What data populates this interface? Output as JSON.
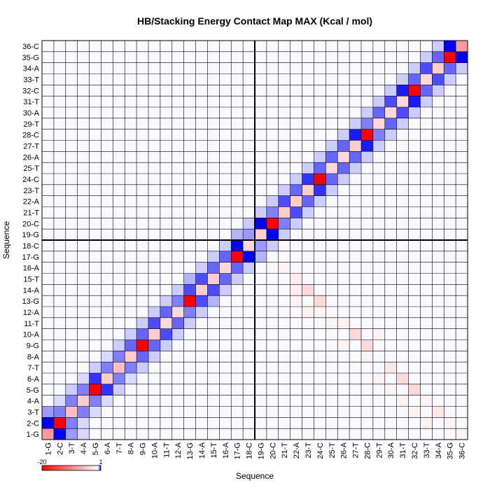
{
  "chart_data": {
    "type": "heatmap",
    "title": "HB/Stacking Energy Contact Map MAX (Kcal / mol)",
    "xlabel": "Sequence",
    "ylabel": "Sequence",
    "labels": [
      "1-G",
      "2-C",
      "3-T",
      "4-A",
      "5-G",
      "6-A",
      "7-T",
      "8-A",
      "9-G",
      "10-A",
      "11-T",
      "12-A",
      "13-G",
      "14-A",
      "15-T",
      "16-A",
      "17-G",
      "18-C",
      "19-G",
      "20-C",
      "21-T",
      "22-A",
      "23-T",
      "24-C",
      "25-T",
      "26-A",
      "27-T",
      "28-C",
      "29-T",
      "30-A",
      "31-T",
      "32-C",
      "33-T",
      "34-A",
      "35-G",
      "36-C"
    ],
    "colorbar": {
      "min": -20,
      "max": 1,
      "min_label": "-20",
      "max_label": "1",
      "low_color": "#ff0000",
      "mid_color": "#ffffff",
      "high_color": "#0000ff"
    },
    "grid": true,
    "separator_after_index": 18,
    "cells": [
      [
        1,
        1,
        -8
      ],
      [
        1,
        2,
        1
      ],
      [
        1,
        3,
        0.4
      ],
      [
        1,
        4,
        0.15
      ],
      [
        2,
        1,
        1
      ],
      [
        2,
        2,
        -20
      ],
      [
        2,
        3,
        0.5
      ],
      [
        2,
        4,
        0.15
      ],
      [
        3,
        1,
        0.4
      ],
      [
        3,
        2,
        0.5
      ],
      [
        3,
        3,
        -5
      ],
      [
        3,
        4,
        0.5
      ],
      [
        3,
        5,
        0.15
      ],
      [
        4,
        2,
        0.15
      ],
      [
        4,
        3,
        0.5
      ],
      [
        4,
        4,
        -4
      ],
      [
        4,
        5,
        0.5
      ],
      [
        4,
        6,
        0.15
      ],
      [
        5,
        3,
        0.2
      ],
      [
        5,
        4,
        0.5
      ],
      [
        5,
        5,
        -20
      ],
      [
        5,
        6,
        0.8
      ],
      [
        5,
        7,
        0.2
      ],
      [
        6,
        4,
        0.15
      ],
      [
        6,
        5,
        0.8
      ],
      [
        6,
        6,
        -4
      ],
      [
        6,
        7,
        0.5
      ],
      [
        6,
        8,
        0.15
      ],
      [
        7,
        5,
        0.2
      ],
      [
        7,
        6,
        0.5
      ],
      [
        7,
        7,
        -5
      ],
      [
        7,
        8,
        0.5
      ],
      [
        7,
        9,
        0.2
      ],
      [
        8,
        6,
        0.15
      ],
      [
        8,
        7,
        0.5
      ],
      [
        8,
        8,
        -4
      ],
      [
        8,
        9,
        0.6
      ],
      [
        8,
        10,
        0.2
      ],
      [
        9,
        7,
        0.2
      ],
      [
        9,
        8,
        0.6
      ],
      [
        9,
        9,
        -20
      ],
      [
        9,
        10,
        0.6
      ],
      [
        9,
        11,
        0.2
      ],
      [
        10,
        8,
        0.2
      ],
      [
        10,
        9,
        0.6
      ],
      [
        10,
        10,
        -4
      ],
      [
        10,
        11,
        0.7
      ],
      [
        10,
        12,
        0.2
      ],
      [
        11,
        9,
        0.2
      ],
      [
        11,
        10,
        0.7
      ],
      [
        11,
        11,
        -3
      ],
      [
        11,
        12,
        0.6
      ],
      [
        11,
        13,
        0.2
      ],
      [
        12,
        10,
        0.2
      ],
      [
        12,
        11,
        0.6
      ],
      [
        12,
        12,
        -3
      ],
      [
        12,
        13,
        0.5
      ],
      [
        12,
        14,
        0.2
      ],
      [
        13,
        11,
        0.2
      ],
      [
        13,
        12,
        0.5
      ],
      [
        13,
        13,
        -20
      ],
      [
        13,
        14,
        0.7
      ],
      [
        13,
        15,
        0.3
      ],
      [
        14,
        12,
        0.2
      ],
      [
        14,
        13,
        0.7
      ],
      [
        14,
        14,
        -4
      ],
      [
        14,
        15,
        0.7
      ],
      [
        14,
        16,
        0.2
      ],
      [
        15,
        13,
        0.3
      ],
      [
        15,
        14,
        0.7
      ],
      [
        15,
        15,
        -4
      ],
      [
        15,
        16,
        0.6
      ],
      [
        15,
        17,
        0.2
      ],
      [
        16,
        14,
        0.2
      ],
      [
        16,
        15,
        0.6
      ],
      [
        16,
        16,
        -3
      ],
      [
        16,
        17,
        0.6
      ],
      [
        16,
        18,
        0.2
      ],
      [
        17,
        15,
        0.2
      ],
      [
        17,
        16,
        0.6
      ],
      [
        17,
        17,
        -20
      ],
      [
        17,
        18,
        1
      ],
      [
        17,
        19,
        0.3
      ],
      [
        18,
        16,
        0.2
      ],
      [
        18,
        17,
        1
      ],
      [
        18,
        18,
        -3
      ],
      [
        18,
        19,
        0.4
      ],
      [
        18,
        20,
        0.2
      ],
      [
        19,
        17,
        0.3
      ],
      [
        19,
        18,
        0.4
      ],
      [
        19,
        19,
        -4
      ],
      [
        19,
        20,
        1
      ],
      [
        19,
        21,
        0.2
      ],
      [
        20,
        18,
        0.2
      ],
      [
        20,
        19,
        1
      ],
      [
        20,
        20,
        -20
      ],
      [
        20,
        21,
        0.5
      ],
      [
        20,
        22,
        0.2
      ],
      [
        21,
        19,
        0.2
      ],
      [
        21,
        20,
        0.5
      ],
      [
        21,
        21,
        -4
      ],
      [
        21,
        22,
        0.7
      ],
      [
        21,
        23,
        0.2
      ],
      [
        22,
        20,
        0.2
      ],
      [
        22,
        21,
        0.7
      ],
      [
        22,
        22,
        -4
      ],
      [
        22,
        23,
        0.6
      ],
      [
        22,
        24,
        0.2
      ],
      [
        23,
        21,
        0.2
      ],
      [
        23,
        22,
        0.6
      ],
      [
        23,
        23,
        -4
      ],
      [
        23,
        24,
        0.8
      ],
      [
        23,
        25,
        0.2
      ],
      [
        24,
        22,
        0.2
      ],
      [
        24,
        23,
        0.8
      ],
      [
        24,
        24,
        -20
      ],
      [
        24,
        25,
        0.6
      ],
      [
        24,
        26,
        0.2
      ],
      [
        25,
        23,
        0.2
      ],
      [
        25,
        24,
        0.6
      ],
      [
        25,
        25,
        -3
      ],
      [
        25,
        26,
        0.6
      ],
      [
        25,
        27,
        0.2
      ],
      [
        26,
        24,
        0.2
      ],
      [
        26,
        25,
        0.6
      ],
      [
        26,
        26,
        -3
      ],
      [
        26,
        27,
        0.6
      ],
      [
        26,
        28,
        0.2
      ],
      [
        27,
        25,
        0.2
      ],
      [
        27,
        26,
        0.6
      ],
      [
        27,
        27,
        -4
      ],
      [
        27,
        28,
        0.9
      ],
      [
        27,
        29,
        0.2
      ],
      [
        28,
        26,
        0.2
      ],
      [
        28,
        27,
        0.9
      ],
      [
        28,
        28,
        -20
      ],
      [
        28,
        29,
        0.5
      ],
      [
        28,
        30,
        0.2
      ],
      [
        29,
        27,
        0.2
      ],
      [
        29,
        28,
        0.5
      ],
      [
        29,
        29,
        -3
      ],
      [
        29,
        30,
        0.6
      ],
      [
        29,
        31,
        0.2
      ],
      [
        30,
        28,
        0.2
      ],
      [
        30,
        29,
        0.6
      ],
      [
        30,
        30,
        -3
      ],
      [
        30,
        31,
        0.7
      ],
      [
        30,
        32,
        0.2
      ],
      [
        31,
        29,
        0.2
      ],
      [
        31,
        30,
        0.7
      ],
      [
        31,
        31,
        -3
      ],
      [
        31,
        32,
        0.9
      ],
      [
        31,
        33,
        0.2
      ],
      [
        32,
        30,
        0.2
      ],
      [
        32,
        31,
        0.9
      ],
      [
        32,
        32,
        -20
      ],
      [
        32,
        33,
        0.6
      ],
      [
        32,
        34,
        0.2
      ],
      [
        33,
        31,
        0.2
      ],
      [
        33,
        32,
        0.6
      ],
      [
        33,
        33,
        -3
      ],
      [
        33,
        34,
        0.7
      ],
      [
        33,
        35,
        0.2
      ],
      [
        34,
        32,
        0.2
      ],
      [
        34,
        33,
        0.7
      ],
      [
        34,
        34,
        -4
      ],
      [
        34,
        35,
        0.6
      ],
      [
        34,
        36,
        0.2
      ],
      [
        35,
        33,
        0.2
      ],
      [
        35,
        34,
        0.6
      ],
      [
        35,
        35,
        -20
      ],
      [
        35,
        36,
        1
      ],
      [
        36,
        34,
        0.2
      ],
      [
        36,
        35,
        1
      ],
      [
        36,
        36,
        -8
      ],
      [
        13,
        24,
        -3
      ],
      [
        14,
        23,
        -3
      ],
      [
        14,
        22,
        -1.5
      ],
      [
        15,
        22,
        -1.5
      ],
      [
        13,
        22,
        -1
      ],
      [
        12,
        23,
        -1
      ],
      [
        16,
        21,
        -1
      ],
      [
        11,
        26,
        -1
      ],
      [
        10,
        27,
        -3
      ],
      [
        9,
        28,
        -3
      ],
      [
        9,
        26,
        -1
      ],
      [
        8,
        28,
        -1
      ],
      [
        10,
        29,
        -1
      ],
      [
        7,
        30,
        -2
      ],
      [
        6,
        31,
        -3
      ],
      [
        5,
        32,
        -3
      ],
      [
        4,
        33,
        -1
      ],
      [
        3,
        34,
        -2
      ],
      [
        2,
        35,
        -1
      ],
      [
        1,
        36,
        -1
      ],
      [
        6,
        29,
        -1
      ],
      [
        4,
        31,
        -1
      ],
      [
        2,
        33,
        -1
      ],
      [
        11,
        25,
        -1
      ],
      [
        12,
        24,
        -1
      ],
      [
        3,
        32,
        -1
      ],
      [
        5,
        30,
        -1
      ]
    ]
  }
}
